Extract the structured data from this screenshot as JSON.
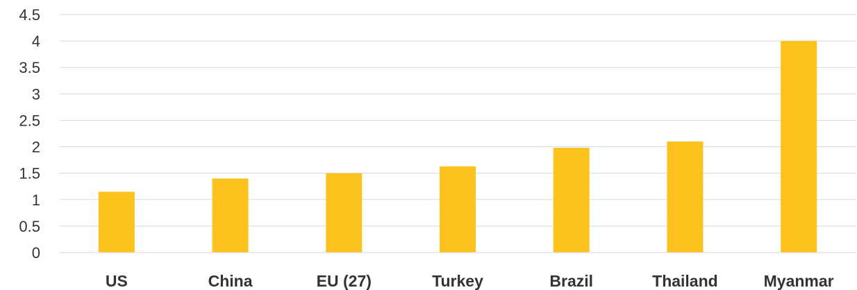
{
  "chart_data": {
    "type": "bar",
    "categories": [
      "US",
      "China",
      "EU (27)",
      "Turkey",
      "Brazil",
      "Thailand",
      "Myanmar"
    ],
    "values": [
      1.15,
      1.4,
      1.5,
      1.63,
      1.98,
      2.1,
      4.0
    ],
    "title": "",
    "xlabel": "",
    "ylabel": "",
    "ylim": [
      0,
      4.5
    ],
    "yticks": [
      "0",
      "0.5",
      "1",
      "1.5",
      "2",
      "2.5",
      "3",
      "3.5",
      "4",
      "4.5"
    ],
    "grid": true,
    "legend": "none",
    "colors": {
      "bar": "#FDC21E",
      "grid": "#D9D9D9",
      "text": "#333333"
    }
  }
}
